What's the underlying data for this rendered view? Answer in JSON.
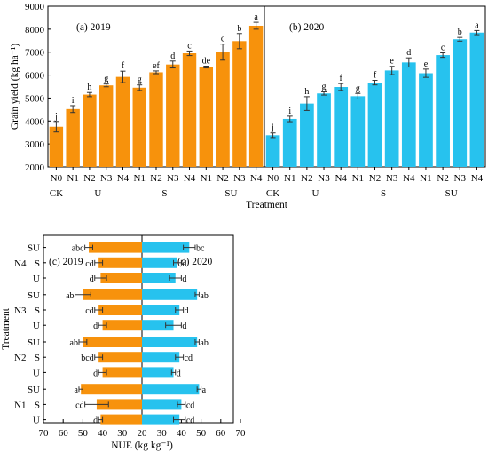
{
  "colors": {
    "y2019": "#F7920C",
    "y2020": "#27C2EE",
    "frame": "#000000",
    "error": "#333333"
  },
  "chart_data": [
    {
      "type": "bar",
      "ylabel": "Grain yield (kg ha⁻¹)",
      "xlabel": "Treatment",
      "ylim": [
        2000,
        9000
      ],
      "yticks": [
        2000,
        3000,
        4000,
        5000,
        6000,
        7000,
        8000,
        9000
      ],
      "groups": [
        {
          "label": "CK",
          "start": 0,
          "count": 1
        },
        {
          "label": "U",
          "start": 1,
          "count": 4
        },
        {
          "label": "S",
          "start": 5,
          "count": 4
        },
        {
          "label": "SU",
          "start": 9,
          "count": 4
        }
      ],
      "categories": [
        "N0",
        "N1",
        "N2",
        "N3",
        "N4",
        "N1",
        "N2",
        "N3",
        "N4",
        "N1",
        "N2",
        "N3",
        "N4"
      ],
      "series": [
        {
          "panel": "(a) 2019",
          "values": [
            3750,
            4520,
            5150,
            5550,
            5920,
            5450,
            6120,
            6460,
            6950,
            6350,
            7000,
            7480,
            8150
          ],
          "errors": [
            230,
            150,
            90,
            60,
            250,
            120,
            60,
            150,
            100,
            40,
            350,
            330,
            150
          ],
          "letters": [
            "j",
            "i",
            "h",
            "g",
            "f",
            "g",
            "ef",
            "d",
            "c",
            "de",
            "c",
            "b",
            "a"
          ]
        },
        {
          "panel": "(b) 2020",
          "values": [
            3380,
            4090,
            4760,
            5200,
            5480,
            5080,
            5670,
            6200,
            6550,
            6080,
            6870,
            7560,
            7850
          ],
          "errors": [
            100,
            120,
            300,
            70,
            150,
            120,
            100,
            180,
            200,
            180,
            100,
            80,
            90
          ],
          "letters": [
            "j",
            "i",
            "h",
            "g",
            "f",
            "g",
            "f",
            "e",
            "d",
            "e",
            "c",
            "b",
            "a"
          ]
        }
      ]
    },
    {
      "type": "bar",
      "orientation": "horizontal",
      "ylabel": "Treatment",
      "xlabel": "NUE (kg kg⁻¹)",
      "xticks_left": [
        70,
        60,
        50,
        40,
        30,
        20
      ],
      "xticks_right": [
        30,
        40,
        50,
        60,
        70
      ],
      "groups": [
        {
          "label": "N4",
          "start": 0,
          "count": 3
        },
        {
          "label": "N3",
          "start": 3,
          "count": 3
        },
        {
          "label": "N2",
          "start": 6,
          "count": 3
        },
        {
          "label": "N1",
          "start": 9,
          "count": 3
        }
      ],
      "categories": [
        "SU",
        "S",
        "U",
        "SU",
        "S",
        "U",
        "SU",
        "S",
        "U",
        "SU",
        "S",
        "U"
      ],
      "series": [
        {
          "panel": "(c) 2019",
          "values": [
            47,
            42,
            41,
            50,
            42,
            40,
            50,
            42,
            40,
            51,
            43,
            41
          ],
          "errors": [
            2,
            2,
            3,
            4,
            2,
            2,
            2,
            2,
            2,
            1,
            6,
            1
          ],
          "letters": [
            "abc",
            "cd",
            "d",
            "ab",
            "cd",
            "d",
            "ab",
            "bcd",
            "d",
            "a",
            "cd",
            "d"
          ]
        },
        {
          "panel": "(d) 2020",
          "values": [
            44,
            38,
            37,
            48,
            39,
            36,
            48,
            39,
            36,
            49,
            40,
            39
          ],
          "errors": [
            3,
            2,
            3,
            1,
            2,
            4,
            1,
            2,
            1,
            1,
            2,
            3
          ],
          "letters": [
            "bc",
            "d",
            "d",
            "ab",
            "d",
            "d",
            "ab",
            "cd",
            "d",
            "a",
            "cd",
            "cd"
          ]
        }
      ]
    }
  ]
}
